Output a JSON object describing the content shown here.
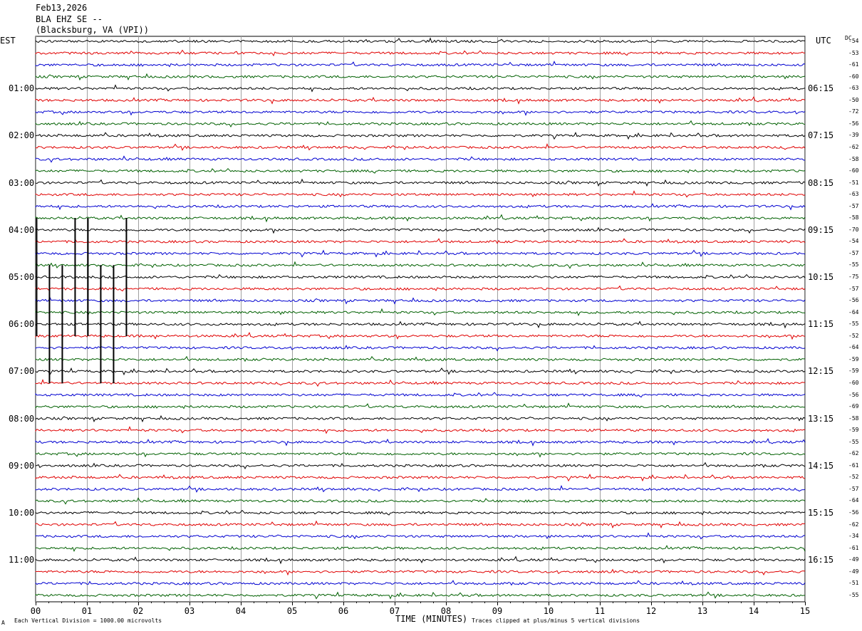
{
  "header": {
    "date": "Feb13,2026",
    "station": "BLA EHZ SE --",
    "location": "(Blacksburg, VA (VPI))"
  },
  "axis": {
    "left_label": "EST",
    "right_label": "UTC",
    "dc_label": "DC",
    "xlabel": "TIME (MINUTES)"
  },
  "footer": {
    "corner": "A",
    "scale_note": "Each Vertical Division = 1000.00 microvolts",
    "clip_note": "Traces clipped at plus/minus 5 vertical divisions"
  },
  "colors": {
    "cycle": [
      "#000000",
      "#e00000",
      "#0000d0",
      "#006000"
    ],
    "grid": "#a0a0a0"
  },
  "chart_data": {
    "type": "line",
    "title": "BLA EHZ SE --",
    "x_range_minutes": [
      0,
      15
    ],
    "x_ticks": [
      "00",
      "01",
      "02",
      "03",
      "04",
      "05",
      "06",
      "07",
      "08",
      "09",
      "10",
      "11",
      "12",
      "13",
      "14",
      "15"
    ],
    "row_count": 48,
    "left_hour_labels": [
      {
        "row": 4,
        "label": "01:00"
      },
      {
        "row": 8,
        "label": "02:00"
      },
      {
        "row": 12,
        "label": "03:00"
      },
      {
        "row": 16,
        "label": "04:00"
      },
      {
        "row": 20,
        "label": "05:00"
      },
      {
        "row": 24,
        "label": "06:00"
      },
      {
        "row": 28,
        "label": "07:00"
      },
      {
        "row": 32,
        "label": "08:00"
      },
      {
        "row": 36,
        "label": "09:00"
      },
      {
        "row": 40,
        "label": "10:00"
      },
      {
        "row": 44,
        "label": "11:00"
      }
    ],
    "right_hour_labels": [
      {
        "row": 4,
        "label": "06:15"
      },
      {
        "row": 8,
        "label": "07:15"
      },
      {
        "row": 12,
        "label": "08:15"
      },
      {
        "row": 16,
        "label": "09:15"
      },
      {
        "row": 20,
        "label": "10:15"
      },
      {
        "row": 24,
        "label": "11:15"
      },
      {
        "row": 28,
        "label": "12:15"
      },
      {
        "row": 32,
        "label": "13:15"
      },
      {
        "row": 36,
        "label": "14:15"
      },
      {
        "row": 40,
        "label": "15:15"
      },
      {
        "row": 44,
        "label": "16:15"
      }
    ],
    "dc_offsets": [
      "-54",
      "-53",
      "-61",
      "-60",
      "-63",
      "-50",
      "-72",
      "-56",
      "-39",
      "-62",
      "-58",
      "-60",
      "-51",
      "-63",
      "-57",
      "-58",
      "-70",
      "-54",
      "-57",
      "-55",
      "-75",
      "-57",
      "-56",
      "-64",
      "-55",
      "-52",
      "-64",
      "-59",
      "-59",
      "-60",
      "-56",
      "-69",
      "-58",
      "-59",
      "-55",
      "-62",
      "-61",
      "-52",
      "-57",
      "-64",
      "-56",
      "-62",
      "-34",
      "-61",
      "-49",
      "-49",
      "-51",
      "-55"
    ],
    "spikes": [
      {
        "row": 20,
        "minutes": [
          0.02,
          0.77,
          1.02,
          1.77
        ]
      },
      {
        "row": 24,
        "minutes": [
          0.27,
          0.52,
          1.27,
          1.52
        ]
      }
    ]
  }
}
